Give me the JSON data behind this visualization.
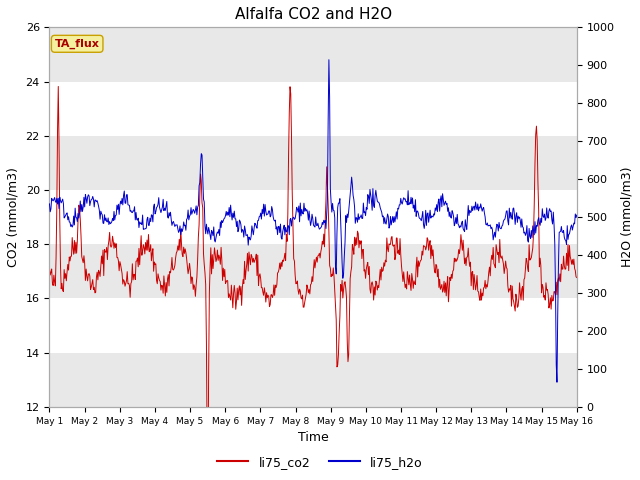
{
  "title": "Alfalfa CO2 and H2O",
  "xlabel": "Time",
  "ylabel_left": "CO2 (mmol/m3)",
  "ylabel_right": "H2O (mmol/m3)",
  "ylim_left": [
    12,
    26
  ],
  "ylim_right": [
    0,
    1000
  ],
  "yticks_left": [
    12,
    14,
    16,
    18,
    20,
    22,
    24,
    26
  ],
  "yticks_right": [
    0,
    100,
    200,
    300,
    400,
    500,
    600,
    700,
    800,
    900,
    1000
  ],
  "xtick_labels": [
    "May 1",
    "May 2",
    "May 3",
    "May 4",
    "May 5",
    "May 6",
    "May 7",
    "May 8",
    "May 9",
    "May 10",
    "May 11",
    "May 12",
    "May 13",
    "May 14",
    "May 15",
    "May 16"
  ],
  "color_co2": "#cc0000",
  "color_h2o": "#0000cc",
  "label_co2": "li75_co2",
  "label_h2o": "li75_h2o",
  "ta_flux_label": "TA_flux",
  "background_color": "#ffffff",
  "grid_band_color": "#e8e8e8",
  "title_fontsize": 11,
  "axis_label_fontsize": 9,
  "tick_fontsize": 8
}
